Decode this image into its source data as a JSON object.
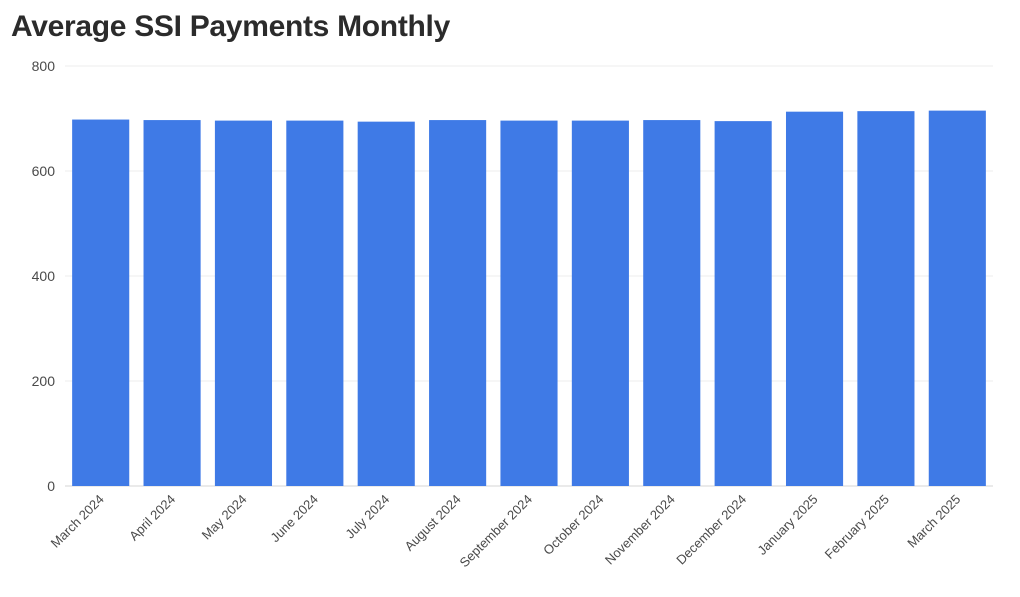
{
  "chart_data": {
    "type": "bar",
    "title": "Average SSI Payments Monthly",
    "xlabel": "",
    "ylabel": "",
    "ylim": [
      0,
      800
    ],
    "yticks": [
      0,
      200,
      400,
      600,
      800
    ],
    "grid": true,
    "bar_color": "#3f7ae6",
    "categories": [
      "March 2024",
      "April 2024",
      "May 2024",
      "June 2024",
      "July 2024",
      "August 2024",
      "September 2024",
      "October 2024",
      "November 2024",
      "December 2024",
      "January 2025",
      "February 2025",
      "March 2025"
    ],
    "values": [
      698,
      697,
      696,
      696,
      694,
      697,
      696,
      696,
      697,
      695,
      713,
      714,
      715
    ]
  }
}
